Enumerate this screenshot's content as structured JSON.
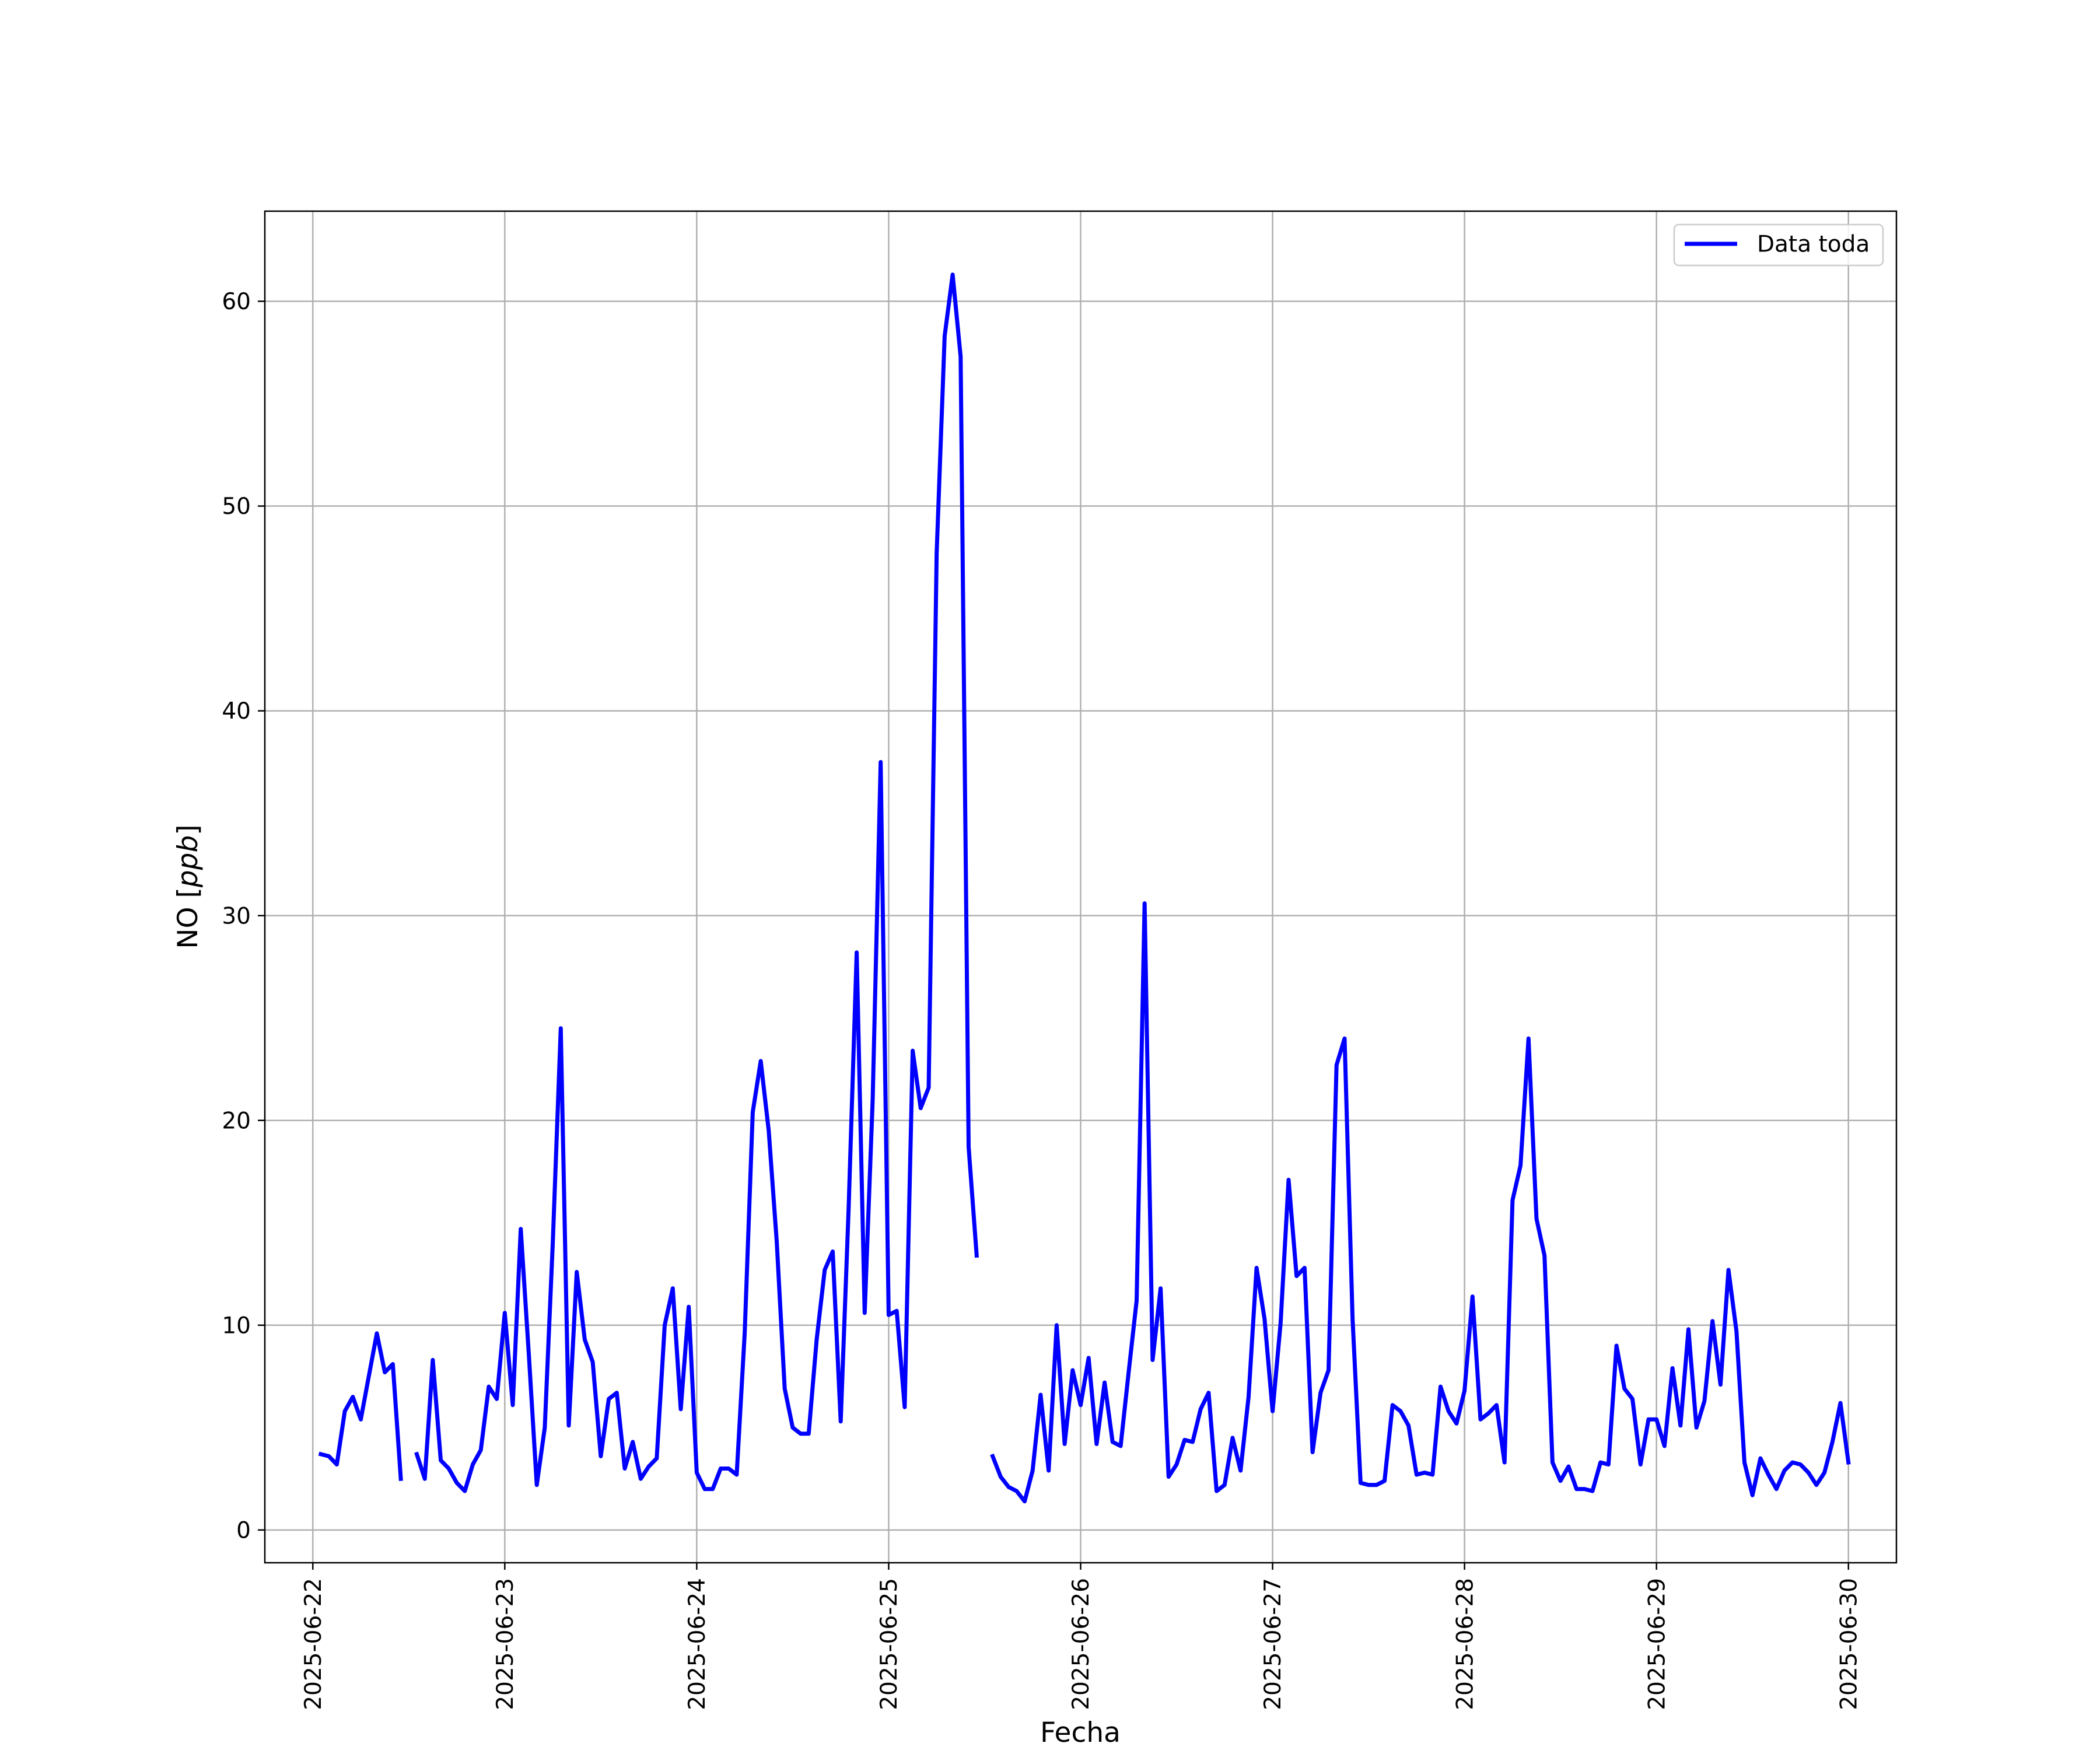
{
  "chart_data": {
    "type": "line",
    "title": "",
    "xlabel": "Fecha",
    "ylabel_prefix": "NO [",
    "ylabel_unit": "ppb",
    "ylabel_suffix": "]",
    "x_start": "2025-06-22",
    "x_end": "2025-06-30",
    "xlim": [
      "2025-06-21 18:00",
      "2025-06-30 06:00"
    ],
    "ylim": [
      -1.6,
      64.4
    ],
    "x_ticks": [
      "2025-06-22",
      "2025-06-23",
      "2025-06-24",
      "2025-06-25",
      "2025-06-26",
      "2025-06-27",
      "2025-06-28",
      "2025-06-29",
      "2025-06-30"
    ],
    "y_ticks": [
      0,
      10,
      20,
      30,
      40,
      50,
      60
    ],
    "grid": true,
    "legend_position": "top-right",
    "series": [
      {
        "name": "Data toda",
        "color": "#0000ff",
        "points": [
          [
            "2025-06-22 01:00",
            3.7
          ],
          [
            "2025-06-22 02:00",
            3.6
          ],
          [
            "2025-06-22 03:00",
            3.2
          ],
          [
            "2025-06-22 04:00",
            5.8
          ],
          [
            "2025-06-22 05:00",
            6.5
          ],
          [
            "2025-06-22 06:00",
            5.4
          ],
          [
            "2025-06-22 07:00",
            7.5
          ],
          [
            "2025-06-22 08:00",
            9.6
          ],
          [
            "2025-06-22 09:00",
            7.7
          ],
          [
            "2025-06-22 10:00",
            8.1
          ],
          [
            "2025-06-22 11:00",
            2.5
          ],
          [
            "2025-06-22 12:00",
            null
          ],
          [
            "2025-06-22 13:00",
            3.7
          ],
          [
            "2025-06-22 14:00",
            2.5
          ],
          [
            "2025-06-22 15:00",
            8.3
          ],
          [
            "2025-06-22 16:00",
            3.4
          ],
          [
            "2025-06-22 17:00",
            3.0
          ],
          [
            "2025-06-22 18:00",
            2.3
          ],
          [
            "2025-06-22 19:00",
            1.9
          ],
          [
            "2025-06-22 20:00",
            3.2
          ],
          [
            "2025-06-22 21:00",
            3.9
          ],
          [
            "2025-06-22 22:00",
            7.0
          ],
          [
            "2025-06-22 23:00",
            6.4
          ],
          [
            "2025-06-23 00:00",
            10.6
          ],
          [
            "2025-06-23 01:00",
            6.1
          ],
          [
            "2025-06-23 02:00",
            14.7
          ],
          [
            "2025-06-23 03:00",
            8.6
          ],
          [
            "2025-06-23 04:00",
            2.2
          ],
          [
            "2025-06-23 05:00",
            5.0
          ],
          [
            "2025-06-23 06:00",
            14.0
          ],
          [
            "2025-06-23 07:00",
            24.5
          ],
          [
            "2025-06-23 08:00",
            5.1
          ],
          [
            "2025-06-23 09:00",
            12.6
          ],
          [
            "2025-06-23 10:00",
            9.3
          ],
          [
            "2025-06-23 11:00",
            8.2
          ],
          [
            "2025-06-23 12:00",
            3.6
          ],
          [
            "2025-06-23 13:00",
            6.4
          ],
          [
            "2025-06-23 14:00",
            6.7
          ],
          [
            "2025-06-23 15:00",
            3.0
          ],
          [
            "2025-06-23 16:00",
            4.3
          ],
          [
            "2025-06-23 17:00",
            2.5
          ],
          [
            "2025-06-23 18:00",
            3.1
          ],
          [
            "2025-06-23 19:00",
            3.5
          ],
          [
            "2025-06-23 20:00",
            10.0
          ],
          [
            "2025-06-23 21:00",
            11.8
          ],
          [
            "2025-06-23 22:00",
            5.9
          ],
          [
            "2025-06-23 23:00",
            10.9
          ],
          [
            "2025-06-24 00:00",
            2.8
          ],
          [
            "2025-06-24 01:00",
            2.0
          ],
          [
            "2025-06-24 02:00",
            2.0
          ],
          [
            "2025-06-24 03:00",
            3.0
          ],
          [
            "2025-06-24 04:00",
            3.0
          ],
          [
            "2025-06-24 05:00",
            2.7
          ],
          [
            "2025-06-24 06:00",
            9.6
          ],
          [
            "2025-06-24 07:00",
            20.4
          ],
          [
            "2025-06-24 08:00",
            22.9
          ],
          [
            "2025-06-24 09:00",
            19.5
          ],
          [
            "2025-06-24 10:00",
            14.1
          ],
          [
            "2025-06-24 11:00",
            6.9
          ],
          [
            "2025-06-24 12:00",
            5.0
          ],
          [
            "2025-06-24 13:00",
            4.7
          ],
          [
            "2025-06-24 14:00",
            4.7
          ],
          [
            "2025-06-24 15:00",
            9.3
          ],
          [
            "2025-06-24 16:00",
            12.7
          ],
          [
            "2025-06-24 17:00",
            13.6
          ],
          [
            "2025-06-24 18:00",
            5.3
          ],
          [
            "2025-06-24 19:00",
            15.8
          ],
          [
            "2025-06-24 20:00",
            28.2
          ],
          [
            "2025-06-24 21:00",
            10.6
          ],
          [
            "2025-06-24 22:00",
            21.0
          ],
          [
            "2025-06-24 23:00",
            37.5
          ],
          [
            "2025-06-25 00:00",
            10.5
          ],
          [
            "2025-06-25 01:00",
            10.7
          ],
          [
            "2025-06-25 02:00",
            6.0
          ],
          [
            "2025-06-25 03:00",
            23.4
          ],
          [
            "2025-06-25 04:00",
            20.6
          ],
          [
            "2025-06-25 05:00",
            21.6
          ],
          [
            "2025-06-25 06:00",
            47.7
          ],
          [
            "2025-06-25 07:00",
            58.3
          ],
          [
            "2025-06-25 08:00",
            61.3
          ],
          [
            "2025-06-25 09:00",
            57.3
          ],
          [
            "2025-06-25 10:00",
            18.7
          ],
          [
            "2025-06-25 11:00",
            13.4
          ],
          [
            "2025-06-25 12:00",
            null
          ],
          [
            "2025-06-25 13:00",
            3.6
          ],
          [
            "2025-06-25 14:00",
            2.6
          ],
          [
            "2025-06-25 15:00",
            2.1
          ],
          [
            "2025-06-25 16:00",
            1.9
          ],
          [
            "2025-06-25 17:00",
            1.4
          ],
          [
            "2025-06-25 18:00",
            2.9
          ],
          [
            "2025-06-25 19:00",
            6.6
          ],
          [
            "2025-06-25 20:00",
            2.9
          ],
          [
            "2025-06-25 21:00",
            10.0
          ],
          [
            "2025-06-25 22:00",
            4.2
          ],
          [
            "2025-06-25 23:00",
            7.8
          ],
          [
            "2025-06-26 00:00",
            6.1
          ],
          [
            "2025-06-26 01:00",
            8.4
          ],
          [
            "2025-06-26 02:00",
            4.2
          ],
          [
            "2025-06-26 03:00",
            7.2
          ],
          [
            "2025-06-26 04:00",
            4.3
          ],
          [
            "2025-06-26 05:00",
            4.1
          ],
          [
            "2025-06-26 06:00",
            7.7
          ],
          [
            "2025-06-26 07:00",
            11.2
          ],
          [
            "2025-06-26 08:00",
            30.6
          ],
          [
            "2025-06-26 09:00",
            8.3
          ],
          [
            "2025-06-26 10:00",
            11.8
          ],
          [
            "2025-06-26 11:00",
            2.6
          ],
          [
            "2025-06-26 12:00",
            3.2
          ],
          [
            "2025-06-26 13:00",
            4.4
          ],
          [
            "2025-06-26 14:00",
            4.3
          ],
          [
            "2025-06-26 15:00",
            5.9
          ],
          [
            "2025-06-26 16:00",
            6.7
          ],
          [
            "2025-06-26 17:00",
            1.9
          ],
          [
            "2025-06-26 18:00",
            2.2
          ],
          [
            "2025-06-26 19:00",
            4.5
          ],
          [
            "2025-06-26 20:00",
            2.9
          ],
          [
            "2025-06-26 21:00",
            6.5
          ],
          [
            "2025-06-26 22:00",
            12.8
          ],
          [
            "2025-06-26 23:00",
            10.3
          ],
          [
            "2025-06-27 00:00",
            5.8
          ],
          [
            "2025-06-27 01:00",
            10.1
          ],
          [
            "2025-06-27 02:00",
            17.1
          ],
          [
            "2025-06-27 03:00",
            12.4
          ],
          [
            "2025-06-27 04:00",
            12.8
          ],
          [
            "2025-06-27 05:00",
            3.8
          ],
          [
            "2025-06-27 06:00",
            6.7
          ],
          [
            "2025-06-27 07:00",
            7.8
          ],
          [
            "2025-06-27 08:00",
            22.7
          ],
          [
            "2025-06-27 09:00",
            24.0
          ],
          [
            "2025-06-27 10:00",
            10.3
          ],
          [
            "2025-06-27 11:00",
            2.3
          ],
          [
            "2025-06-27 12:00",
            2.2
          ],
          [
            "2025-06-27 13:00",
            2.2
          ],
          [
            "2025-06-27 14:00",
            2.4
          ],
          [
            "2025-06-27 15:00",
            6.1
          ],
          [
            "2025-06-27 16:00",
            5.8
          ],
          [
            "2025-06-27 17:00",
            5.1
          ],
          [
            "2025-06-27 18:00",
            2.7
          ],
          [
            "2025-06-27 19:00",
            2.8
          ],
          [
            "2025-06-27 20:00",
            2.7
          ],
          [
            "2025-06-27 21:00",
            7.0
          ],
          [
            "2025-06-27 22:00",
            5.8
          ],
          [
            "2025-06-27 23:00",
            5.2
          ],
          [
            "2025-06-28 00:00",
            6.8
          ],
          [
            "2025-06-28 01:00",
            11.4
          ],
          [
            "2025-06-28 02:00",
            5.4
          ],
          [
            "2025-06-28 03:00",
            5.7
          ],
          [
            "2025-06-28 04:00",
            6.1
          ],
          [
            "2025-06-28 05:00",
            3.3
          ],
          [
            "2025-06-28 06:00",
            16.1
          ],
          [
            "2025-06-28 07:00",
            17.8
          ],
          [
            "2025-06-28 08:00",
            24.0
          ],
          [
            "2025-06-28 09:00",
            15.2
          ],
          [
            "2025-06-28 10:00",
            13.4
          ],
          [
            "2025-06-28 11:00",
            3.3
          ],
          [
            "2025-06-28 12:00",
            2.4
          ],
          [
            "2025-06-28 13:00",
            3.1
          ],
          [
            "2025-06-28 14:00",
            2.0
          ],
          [
            "2025-06-28 15:00",
            2.0
          ],
          [
            "2025-06-28 16:00",
            1.9
          ],
          [
            "2025-06-28 17:00",
            3.3
          ],
          [
            "2025-06-28 18:00",
            3.2
          ],
          [
            "2025-06-28 19:00",
            9.0
          ],
          [
            "2025-06-28 20:00",
            6.9
          ],
          [
            "2025-06-28 21:00",
            6.4
          ],
          [
            "2025-06-28 22:00",
            3.2
          ],
          [
            "2025-06-28 23:00",
            5.4
          ],
          [
            "2025-06-29 00:00",
            5.4
          ],
          [
            "2025-06-29 01:00",
            4.1
          ],
          [
            "2025-06-29 02:00",
            7.9
          ],
          [
            "2025-06-29 03:00",
            5.1
          ],
          [
            "2025-06-29 04:00",
            9.8
          ],
          [
            "2025-06-29 05:00",
            5.0
          ],
          [
            "2025-06-29 06:00",
            6.3
          ],
          [
            "2025-06-29 07:00",
            10.2
          ],
          [
            "2025-06-29 08:00",
            7.1
          ],
          [
            "2025-06-29 09:00",
            12.7
          ],
          [
            "2025-06-29 10:00",
            9.7
          ],
          [
            "2025-06-29 11:00",
            3.3
          ],
          [
            "2025-06-29 12:00",
            1.7
          ],
          [
            "2025-06-29 13:00",
            3.5
          ],
          [
            "2025-06-29 14:00",
            2.7
          ],
          [
            "2025-06-29 15:00",
            2.0
          ],
          [
            "2025-06-29 16:00",
            2.9
          ],
          [
            "2025-06-29 17:00",
            3.3
          ],
          [
            "2025-06-29 18:00",
            3.2
          ],
          [
            "2025-06-29 19:00",
            2.8
          ],
          [
            "2025-06-29 20:00",
            2.2
          ],
          [
            "2025-06-29 21:00",
            2.8
          ],
          [
            "2025-06-29 22:00",
            4.3
          ],
          [
            "2025-06-29 23:00",
            6.2
          ],
          [
            "2025-06-30 00:00",
            3.3
          ]
        ]
      }
    ]
  }
}
